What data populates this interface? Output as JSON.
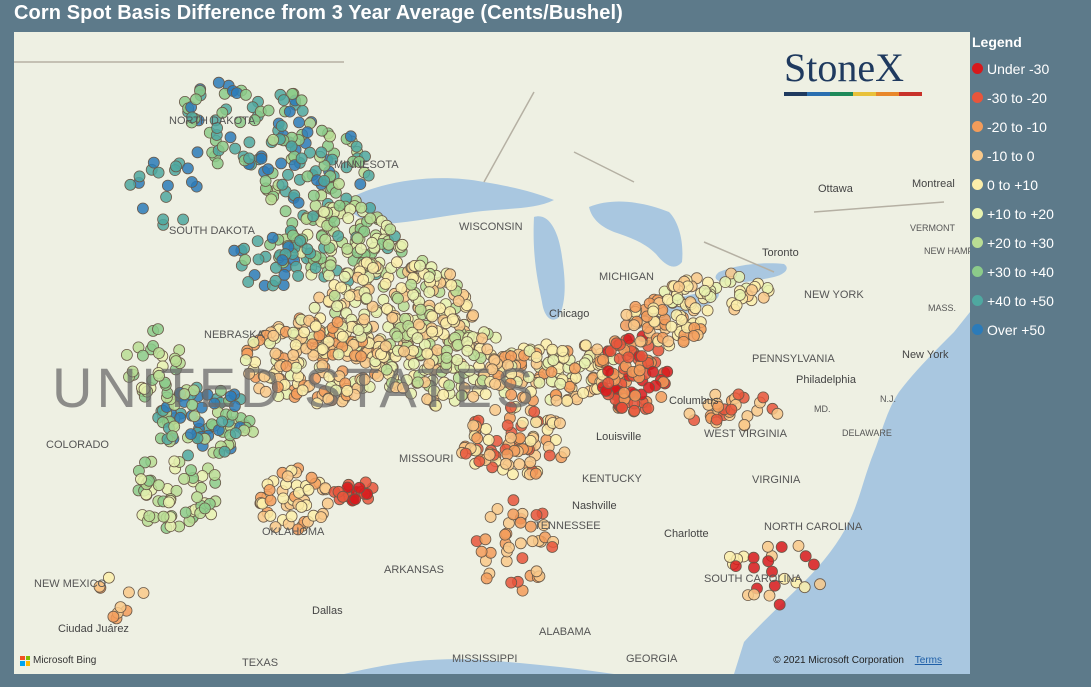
{
  "title": "Corn Spot Basis Difference from 3 Year Average (Cents/Bushel)",
  "legend": {
    "title": "Legend",
    "items": [
      {
        "label": "Under -30",
        "color": "#d7191c"
      },
      {
        "label": "-30 to -20",
        "color": "#e8553b"
      },
      {
        "label": "-20 to -10",
        "color": "#f39c5a"
      },
      {
        "label": "-10 to 0",
        "color": "#f9c98a"
      },
      {
        "label": "0 to +10",
        "color": "#fbeeaa"
      },
      {
        "label": "+10 to +20",
        "color": "#e7f2b0"
      },
      {
        "label": "+20 to +30",
        "color": "#b9dd94"
      },
      {
        "label": "+30 to +40",
        "color": "#8ccb8a"
      },
      {
        "label": "+40 to +50",
        "color": "#4fa8a0"
      },
      {
        "label": "Over +50",
        "color": "#2b7bb9"
      }
    ]
  },
  "logo": {
    "text": "StoneX",
    "bar_colors": [
      "#1f3a5f",
      "#2a6fb0",
      "#1e8a5a",
      "#e8c13a",
      "#e8872a",
      "#c8322a"
    ]
  },
  "map_labels": [
    {
      "text": "NORTH DAKOTA",
      "cls": "state"
    },
    {
      "text": "MINNESOTA",
      "cls": "state"
    },
    {
      "text": "SOUTH DAKOTA",
      "cls": "state"
    },
    {
      "text": "WISCONSIN",
      "cls": "state"
    },
    {
      "text": "MICHIGAN",
      "cls": "state"
    },
    {
      "text": "NEBRASKA",
      "cls": "state"
    },
    {
      "text": "COLORADO",
      "cls": "state"
    },
    {
      "text": "MISSOURI",
      "cls": "state"
    },
    {
      "text": "KENTUCKY",
      "cls": "state"
    },
    {
      "text": "TENNESSEE",
      "cls": "state"
    },
    {
      "text": "OKLAHOMA",
      "cls": "state"
    },
    {
      "text": "ARKANSAS",
      "cls": "state"
    },
    {
      "text": "NEW MEXICO",
      "cls": "state"
    },
    {
      "text": "TEXAS",
      "cls": "state"
    },
    {
      "text": "MISSISSIPPI",
      "cls": "state"
    },
    {
      "text": "ALABAMA",
      "cls": "state"
    },
    {
      "text": "GEORGIA",
      "cls": "state"
    },
    {
      "text": "PENNSYLVANIA",
      "cls": "state"
    },
    {
      "text": "NEW YORK",
      "cls": "state"
    },
    {
      "text": "WEST VIRGINIA",
      "cls": "state"
    },
    {
      "text": "VIRGINIA",
      "cls": "state"
    },
    {
      "text": "NORTH CAROLINA",
      "cls": "state"
    },
    {
      "text": "SOUTH CAROLINA",
      "cls": "state"
    },
    {
      "text": "VERMONT",
      "cls": "state-sm"
    },
    {
      "text": "NEW HAMPSHIRE",
      "cls": "state-sm"
    },
    {
      "text": "MASS.",
      "cls": "state-sm"
    },
    {
      "text": "N.J.",
      "cls": "state-sm"
    },
    {
      "text": "MD.",
      "cls": "state-sm"
    },
    {
      "text": "DELAWARE",
      "cls": "state-sm"
    },
    {
      "text": "UNITED STATES",
      "cls": "country"
    },
    {
      "text": "Chicago",
      "cls": "city"
    },
    {
      "text": "Columbus",
      "cls": "city"
    },
    {
      "text": "Louisville",
      "cls": "city"
    },
    {
      "text": "Nashville",
      "cls": "city"
    },
    {
      "text": "Charlotte",
      "cls": "city"
    },
    {
      "text": "Philadelphia",
      "cls": "city"
    },
    {
      "text": "New York",
      "cls": "city"
    },
    {
      "text": "Toronto",
      "cls": "city"
    },
    {
      "text": "Ottawa",
      "cls": "city"
    },
    {
      "text": "Montreal",
      "cls": "city"
    },
    {
      "text": "Dallas",
      "cls": "city"
    },
    {
      "text": "Ciudad Juárez",
      "cls": "city"
    }
  ],
  "attribution": {
    "bing": "Microsoft Bing",
    "copyright": "© 2021 Microsoft Corporation",
    "terms": "Terms"
  }
}
